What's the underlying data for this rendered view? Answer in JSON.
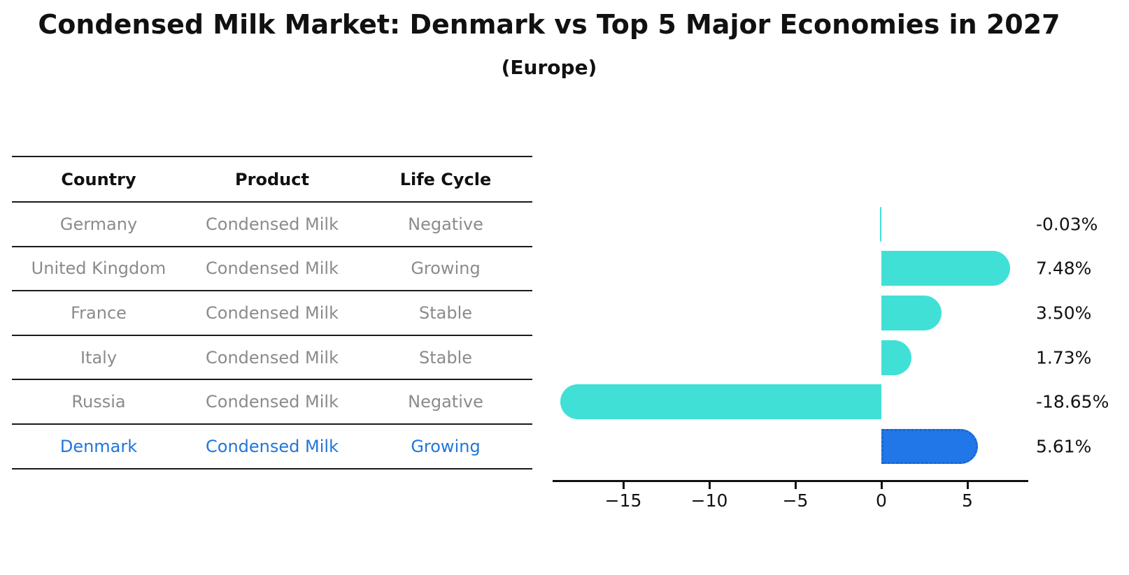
{
  "title": "Condensed Milk Market: Denmark vs Top 5 Major Economies in 2027",
  "subtitle": "(Europe)",
  "table": {
    "headers": [
      "Country",
      "Product",
      "Life Cycle"
    ],
    "rows": [
      {
        "country": "Germany",
        "product": "Condensed Milk",
        "life_cycle": "Negative",
        "highlighted": false
      },
      {
        "country": "United Kingdom",
        "product": "Condensed Milk",
        "life_cycle": "Growing",
        "highlighted": false
      },
      {
        "country": "France",
        "product": "Condensed Milk",
        "life_cycle": "Stable",
        "highlighted": false
      },
      {
        "country": "Italy",
        "product": "Condensed Milk",
        "life_cycle": "Stable",
        "highlighted": false
      },
      {
        "country": "Russia",
        "product": "Condensed Milk",
        "life_cycle": "Negative",
        "highlighted": false
      },
      {
        "country": "Denmark",
        "product": "Condensed Milk",
        "life_cycle": "Growing",
        "highlighted": true
      }
    ]
  },
  "chart_data": {
    "type": "bar",
    "orientation": "horizontal",
    "title": "Condensed Milk Market: Denmark vs Top 5 Major Economies in 2027",
    "subtitle": "(Europe)",
    "categories": [
      "Germany",
      "United Kingdom",
      "France",
      "Italy",
      "Russia",
      "Denmark"
    ],
    "values": [
      -0.03,
      7.48,
      3.5,
      1.73,
      -18.65,
      5.61
    ],
    "value_labels": [
      "-0.03%",
      "7.48%",
      "3.50%",
      "1.73%",
      "-18.65%",
      "5.61%"
    ],
    "unit": "%",
    "x_ticks": [
      -15,
      -10,
      -5,
      0,
      5
    ],
    "x_tick_labels": [
      "−15",
      "−10",
      "−5",
      "0",
      "5"
    ],
    "xlim": [
      -19.1,
      8.5
    ],
    "grid": false,
    "legend": "none",
    "highlight_index": 5,
    "highlight_category": "Denmark"
  },
  "colors": {
    "bar": "#40e0d6",
    "highlight_bar": "#2277e8",
    "highlight_border": "#1765cf",
    "highlight_text": "#2176d9",
    "table_text": "#8b8b8b",
    "heading_text": "#111111",
    "line": "#1a1a1a"
  }
}
